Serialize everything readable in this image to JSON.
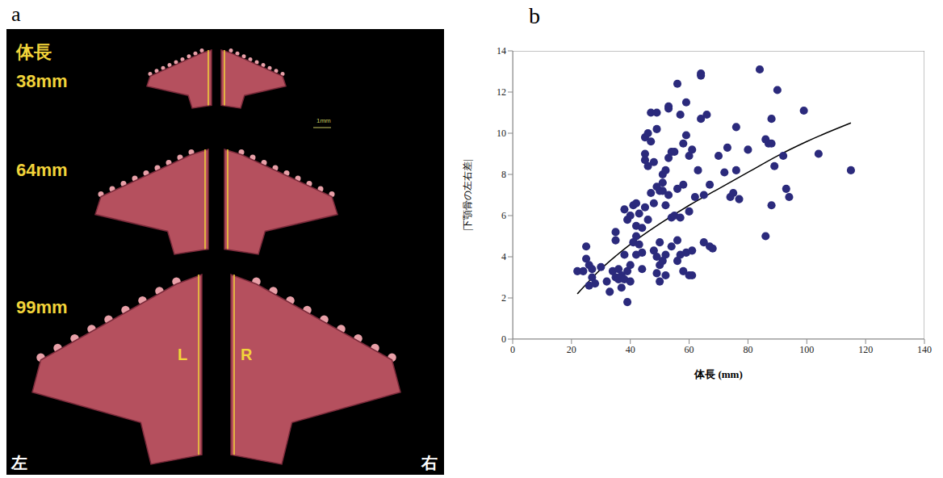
{
  "figure": {
    "panel_a": {
      "letter": "a",
      "header": "体長",
      "specimens": [
        "38mm",
        "64mm",
        "99mm"
      ],
      "scale_bar": "1mm",
      "side_marks": [
        "L",
        "R"
      ],
      "left": "左",
      "right": "右"
    },
    "panel_b_letter": "b"
  },
  "chart_data": {
    "type": "scatter",
    "xlabel": "体長 (mm)",
    "ylabel": "|下顎骨の左右差|",
    "xlim": [
      0,
      140
    ],
    "xticks": [
      0,
      20,
      40,
      60,
      80,
      100,
      120,
      140
    ],
    "ylim": [
      0,
      14
    ],
    "yticks": [
      0,
      2,
      4,
      6,
      8,
      10,
      12,
      14
    ],
    "grid": false,
    "color": "#2b2a7c",
    "marker": "circle",
    "x": [
      22,
      24,
      25,
      25,
      26,
      26,
      27,
      27,
      28,
      30,
      32,
      33,
      34,
      35,
      35,
      35,
      36,
      36,
      37,
      37,
      38,
      38,
      38,
      39,
      39,
      39,
      40,
      40,
      40,
      41,
      41,
      42,
      42,
      42,
      42,
      43,
      43,
      44,
      44,
      44,
      45,
      45,
      45,
      45,
      46,
      46,
      46,
      47,
      47,
      47,
      48,
      48,
      48,
      49,
      49,
      49,
      49,
      49,
      50,
      50,
      50,
      50,
      51,
      51,
      51,
      51,
      52,
      52,
      52,
      52,
      53,
      53,
      53,
      53,
      54,
      54,
      54,
      55,
      55,
      56,
      56,
      56,
      56,
      57,
      57,
      57,
      58,
      58,
      58,
      59,
      59,
      59,
      60,
      60,
      60,
      61,
      61,
      61,
      62,
      63,
      64,
      64,
      64,
      65,
      65,
      66,
      67,
      67,
      68,
      70,
      72,
      73,
      74,
      75,
      76,
      76,
      77,
      80,
      84,
      86,
      86,
      87,
      88,
      88,
      88,
      89,
      90,
      92,
      93,
      94,
      99,
      104,
      115
    ],
    "values": [
      3.3,
      3.3,
      4.5,
      3.9,
      3.6,
      2.6,
      3.0,
      3.4,
      2.7,
      3.5,
      2.8,
      2.3,
      3.3,
      5.2,
      4.8,
      3.0,
      2.9,
      3.4,
      3.1,
      2.5,
      4.1,
      6.3,
      2.9,
      1.8,
      3.3,
      5.8,
      2.8,
      3.6,
      6.0,
      4.7,
      6.5,
      5.5,
      5.0,
      4.1,
      6.6,
      6.1,
      4.6,
      5.4,
      4.2,
      3.4,
      9.0,
      9.8,
      8.7,
      6.4,
      8.4,
      10.0,
      5.8,
      9.6,
      11.0,
      7.1,
      8.6,
      4.3,
      6.6,
      10.2,
      11.0,
      7.4,
      4.0,
      3.2,
      7.2,
      4.7,
      2.8,
      3.6,
      8.0,
      7.6,
      7.2,
      3.8,
      8.2,
      6.5,
      4.1,
      3.1,
      11.3,
      11.2,
      8.8,
      7.0,
      9.1,
      5.9,
      4.5,
      9.1,
      6.0,
      12.4,
      7.3,
      4.8,
      3.8,
      10.9,
      5.9,
      4.1,
      9.5,
      7.5,
      3.3,
      11.5,
      9.9,
      4.2,
      8.9,
      6.2,
      3.1,
      9.2,
      4.3,
      3.1,
      6.9,
      8.2,
      12.9,
      12.8,
      10.7,
      4.7,
      7.0,
      10.9,
      7.5,
      4.5,
      4.4,
      8.9,
      8.1,
      9.3,
      6.9,
      7.1,
      10.3,
      8.2,
      6.8,
      9.2,
      13.1,
      5.0,
      9.7,
      9.5,
      6.5,
      9.5,
      10.7,
      8.4,
      12.1,
      8.9,
      7.3,
      6.9,
      11.1,
      9.0,
      8.2
    ],
    "fit": {
      "type": "line",
      "x": [
        22,
        30,
        40,
        50,
        60,
        70,
        80,
        90,
        100,
        115
      ],
      "values": [
        2.2,
        3.4,
        4.6,
        5.6,
        6.5,
        7.3,
        8.1,
        8.9,
        9.6,
        10.5
      ],
      "color": "#000000",
      "line_style": "solid"
    }
  }
}
